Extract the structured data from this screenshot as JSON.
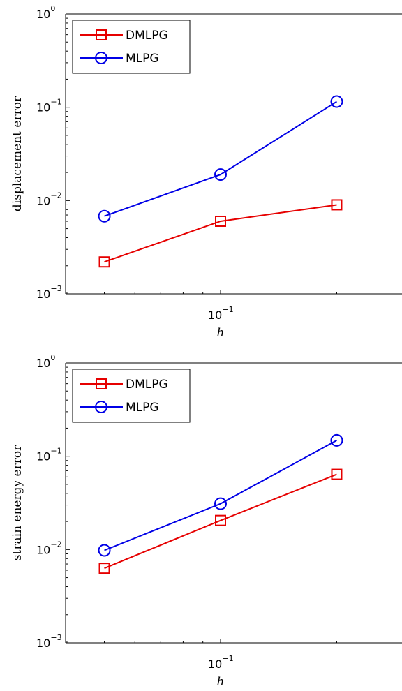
{
  "chart_data": [
    {
      "type": "line",
      "xlabel": "h",
      "ylabel": "displacement error",
      "xscale": "log",
      "yscale": "log",
      "ylim": [
        0.001,
        1
      ],
      "x_ticks": [
        {
          "base": "10",
          "exp": "−1"
        }
      ],
      "y_ticks": [
        {
          "base": "10",
          "exp": "0"
        },
        {
          "base": "10",
          "exp": "−1"
        },
        {
          "base": "10",
          "exp": "−2"
        },
        {
          "base": "10",
          "exp": "−3"
        }
      ],
      "legend_position": "top-left",
      "series": [
        {
          "name": "DMLPG",
          "color": "#e60000",
          "marker": "square",
          "x": [
            0.05,
            0.1,
            0.2
          ],
          "y": [
            0.0022,
            0.006,
            0.009
          ]
        },
        {
          "name": "MLPG",
          "color": "#0000e6",
          "marker": "circle",
          "x": [
            0.05,
            0.1,
            0.2
          ],
          "y": [
            0.0068,
            0.019,
            0.115
          ]
        }
      ]
    },
    {
      "type": "line",
      "xlabel": "h",
      "ylabel": "strain energy error",
      "xscale": "log",
      "yscale": "log",
      "ylim": [
        0.001,
        1
      ],
      "x_ticks": [
        {
          "base": "10",
          "exp": "−1"
        }
      ],
      "y_ticks": [
        {
          "base": "10",
          "exp": "0"
        },
        {
          "base": "10",
          "exp": "−1"
        },
        {
          "base": "10",
          "exp": "−2"
        },
        {
          "base": "10",
          "exp": "−3"
        }
      ],
      "legend_position": "top-left",
      "series": [
        {
          "name": "DMLPG",
          "color": "#e60000",
          "marker": "square",
          "x": [
            0.05,
            0.1,
            0.2
          ],
          "y": [
            0.0063,
            0.0205,
            0.064
          ]
        },
        {
          "name": "MLPG",
          "color": "#0000e6",
          "marker": "circle",
          "x": [
            0.05,
            0.1,
            0.2
          ],
          "y": [
            0.0098,
            0.031,
            0.148
          ]
        }
      ]
    }
  ]
}
